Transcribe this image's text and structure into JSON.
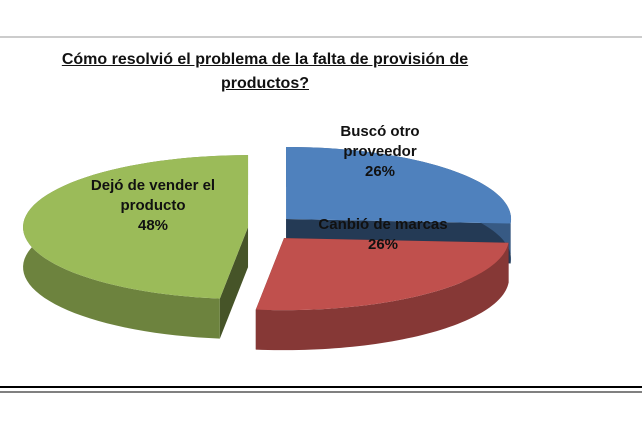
{
  "chart_data": {
    "type": "pie",
    "title": "Cómo resolvió el problema de la falta de provisión de productos?",
    "categories": [
      "Buscó otro proveedor",
      "Canbió de marcas",
      "Dejó de vender el producto"
    ],
    "values": [
      26,
      26,
      48
    ],
    "value_labels": [
      "26%",
      "26%",
      "48%"
    ],
    "colors": [
      "#4f81bd",
      "#c0504d",
      "#9bbb59"
    ]
  }
}
